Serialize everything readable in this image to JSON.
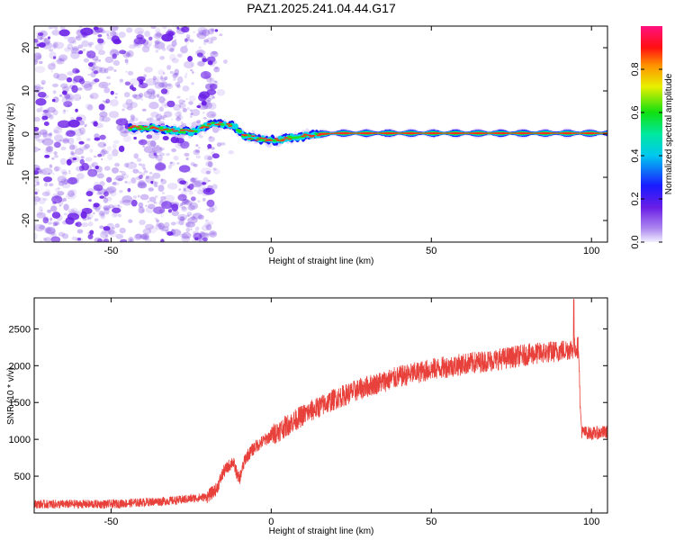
{
  "title": "PAZ1.2025.241.04.44.G17",
  "colors": {
    "snr_line": "#e8403a",
    "frame": "#000000",
    "scatter_purple": "#7a2ee6"
  },
  "chart_data": [
    {
      "type": "heatmap",
      "name": "spectrogram",
      "title": "PAZ1.2025.241.04.44.G17",
      "xlabel": "Height of straight line (km)",
      "ylabel": "Frequency (Hz)",
      "xlim": [
        -74,
        105
      ],
      "ylim": [
        -25,
        25
      ],
      "xticks": [
        -50,
        0,
        50,
        100
      ],
      "xtick_labels": [
        "-50",
        "0",
        "50",
        "100"
      ],
      "yticks": [
        -20,
        -10,
        0,
        10,
        20
      ],
      "ytick_labels": [
        "-20",
        "-10",
        "0",
        "10",
        "20"
      ],
      "colorbar": {
        "label": "Normalized spectral amplitude",
        "range": [
          0,
          1
        ],
        "ticks": [
          0.0,
          0.2,
          0.4,
          0.6,
          0.8
        ],
        "tick_labels": [
          "0.0",
          "0.2",
          "0.4",
          "0.6",
          "0.8"
        ],
        "colormap": [
          "#f8f8ff",
          "#7a2ee6",
          "#1a1aff",
          "#00e5e5",
          "#00e000",
          "#ffff00",
          "#ff8000",
          "#ff0000",
          "#ff0080"
        ]
      },
      "ridge": {
        "description_points": [
          [
            -44,
            1.5
          ],
          [
            -38,
            1.5
          ],
          [
            -30,
            0.8
          ],
          [
            -25,
            0.5
          ],
          [
            -18,
            2.5
          ],
          [
            -12,
            2.0
          ],
          [
            -8,
            -0.5
          ],
          [
            -3,
            -1.2
          ],
          [
            0,
            -1.5
          ],
          [
            5,
            -1.0
          ],
          [
            10,
            -0.5
          ],
          [
            15,
            0
          ],
          [
            20,
            0.2
          ],
          [
            105,
            0.2
          ]
        ],
        "noise_region_x": [
          -74,
          -17
        ]
      }
    },
    {
      "type": "line",
      "name": "snr",
      "xlabel": "Height of straight line (km)",
      "ylabel": "SNR (10 * v/v)",
      "xlim": [
        -74,
        105
      ],
      "ylim": [
        0,
        2920
      ],
      "xticks": [
        -50,
        0,
        50,
        100
      ],
      "xtick_labels": [
        "-50",
        "0",
        "50",
        "100"
      ],
      "yticks": [
        500,
        1000,
        1500,
        2000,
        2500
      ],
      "ytick_labels": [
        "500",
        "1000",
        "1500",
        "2000",
        "2500"
      ],
      "trend": {
        "x": [
          -74,
          -50,
          -30,
          -20,
          -17,
          -15,
          -12,
          -10,
          -8,
          -5,
          0,
          10,
          20,
          30,
          40,
          50,
          60,
          70,
          80,
          90,
          96,
          96.5,
          97,
          100,
          105
        ],
        "y": [
          120,
          120,
          170,
          220,
          330,
          550,
          700,
          450,
          750,
          900,
          1050,
          1330,
          1550,
          1720,
          1850,
          1950,
          2020,
          2080,
          2150,
          2200,
          2250,
          1400,
          1100,
          1080,
          1100
        ]
      },
      "noise_amplitude": 90,
      "spike": {
        "x": 94.5,
        "y": 2900
      }
    }
  ]
}
